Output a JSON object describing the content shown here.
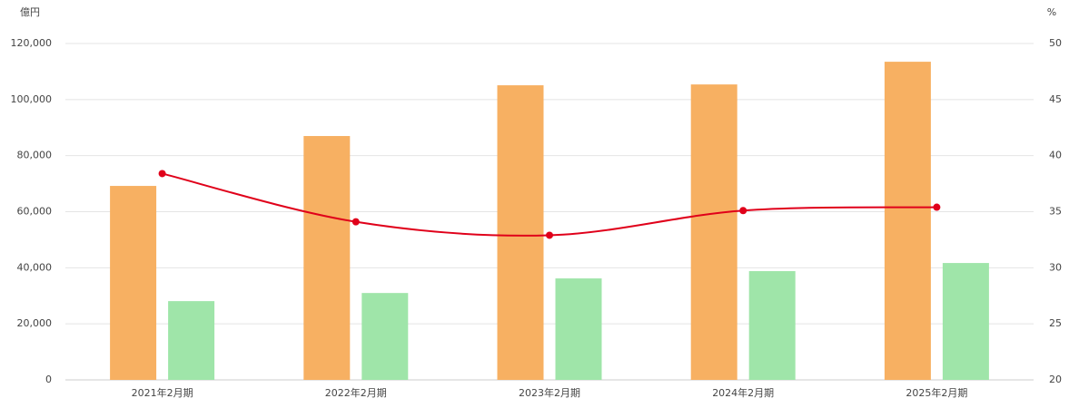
{
  "chart_data": {
    "type": "bar_line",
    "y_label": "億円",
    "y2_label": "%",
    "categories": [
      "2021年2月期",
      "2022年2月期",
      "2023年2月期",
      "2024年2月期",
      "2025年2月期"
    ],
    "series": [
      {
        "type": "bar",
        "color": "#f7b062",
        "values": [
          69200,
          87000,
          105100,
          105400,
          113500
        ]
      },
      {
        "type": "bar",
        "color": "#9fe5a9",
        "values": [
          28100,
          31000,
          36200,
          38800,
          41700
        ]
      },
      {
        "type": "line",
        "axis": "y2",
        "color": "#e0001a",
        "values": [
          38.4,
          34.1,
          32.9,
          35.1,
          35.4
        ]
      }
    ],
    "ylim": [
      0,
      120000
    ],
    "yticks": [
      0,
      {
        "value": 20000,
        "label": "20,000"
      },
      {
        "value": 40000,
        "label": "40,000"
      },
      {
        "value": 60000,
        "label": "60,000"
      },
      {
        "value": 80000,
        "label": "80,000"
      },
      {
        "value": 100000,
        "label": "100,000"
      },
      {
        "value": 120000,
        "label": "120,000"
      }
    ],
    "y2lim": [
      20,
      50
    ],
    "y2ticks": [
      20,
      25,
      30,
      35,
      40,
      45,
      50
    ],
    "grid": true
  }
}
